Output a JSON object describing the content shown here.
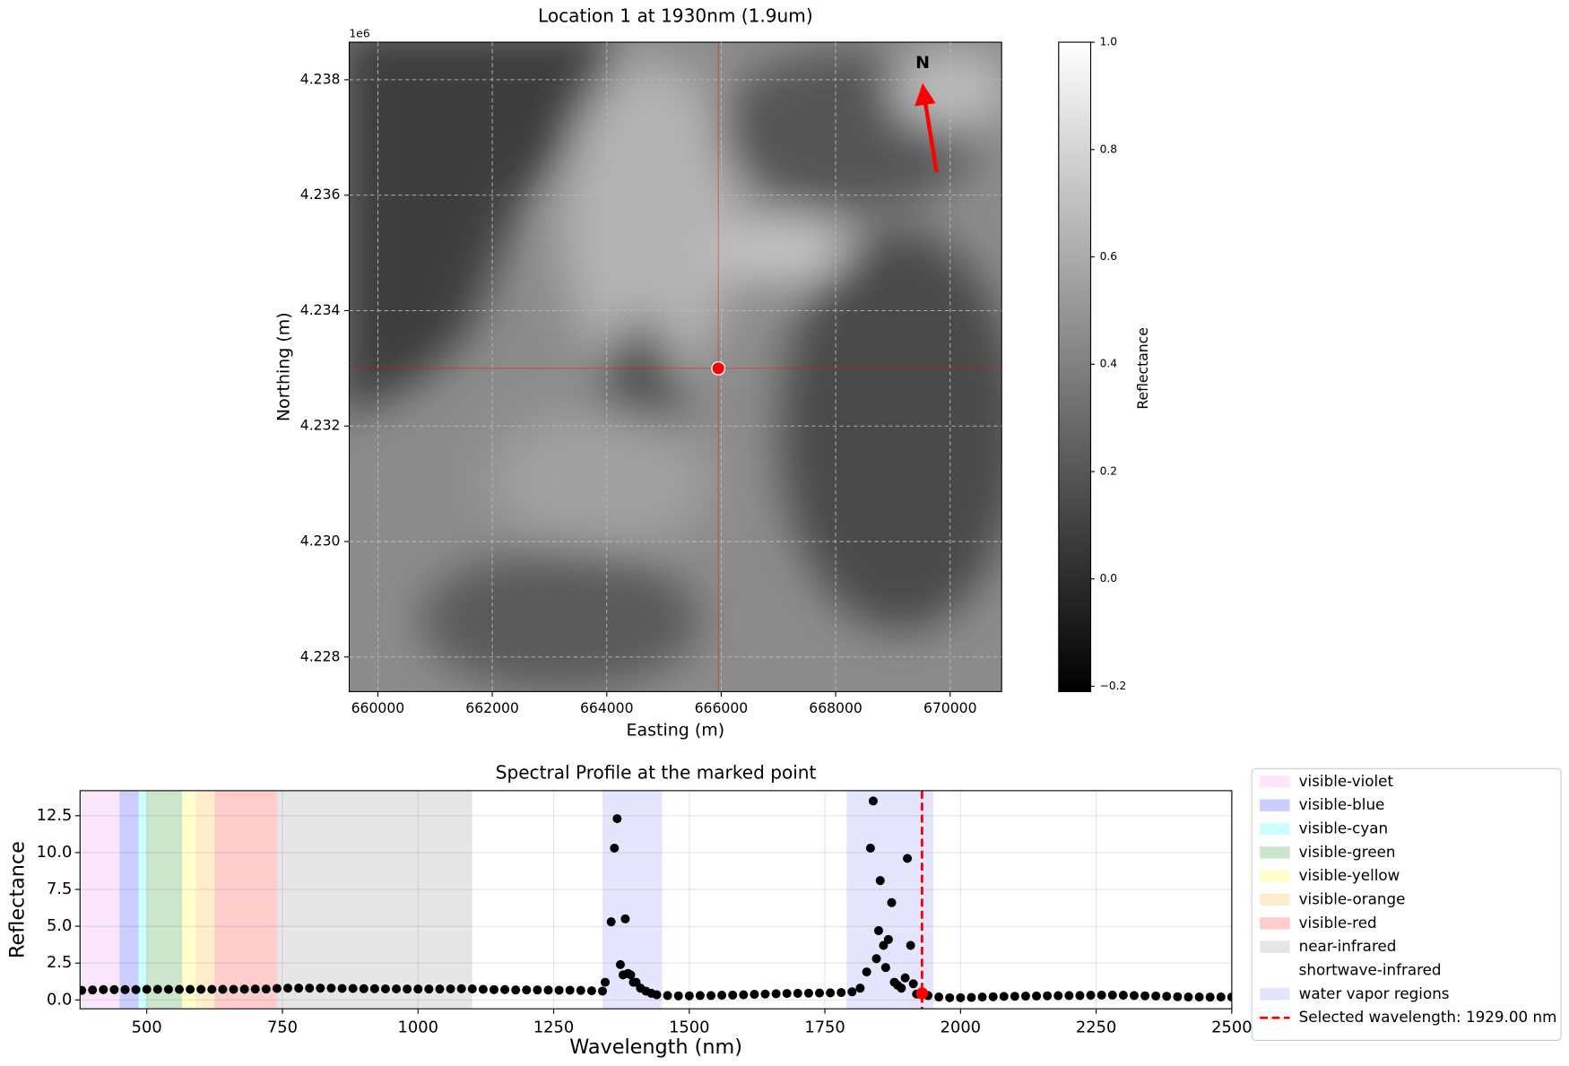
{
  "chart_data": [
    {
      "type": "image",
      "title": "Location 1 at 1930nm (1.9um)",
      "xlabel": "Easting (m)",
      "ylabel": "Northing (m)",
      "offset_text": "1e6",
      "xlim": [
        659500,
        670900
      ],
      "ylim": [
        4227400,
        4238650
      ],
      "xticks": [
        660000,
        662000,
        664000,
        666000,
        668000,
        670000
      ],
      "yticks": [
        {
          "value": 4228000,
          "label": "4.228"
        },
        {
          "value": 4230000,
          "label": "4.230"
        },
        {
          "value": 4232000,
          "label": "4.232"
        },
        {
          "value": 4234000,
          "label": "4.234"
        },
        {
          "value": 4236000,
          "label": "4.236"
        },
        {
          "value": 4238000,
          "label": "4.238"
        }
      ],
      "grid": true,
      "marker": {
        "x": 665950,
        "y": 4233000,
        "color": "#ff0000"
      },
      "north_label": "N",
      "colorbar": {
        "label": "Reflectance",
        "clim": [
          -0.21,
          1.0
        ],
        "ticks": [
          {
            "value": -0.2,
            "label": "−0.2"
          },
          {
            "value": 0,
            "label": "0.0"
          },
          0.2,
          0.4,
          0.6,
          0.8,
          {
            "value": 1,
            "label": "1.0"
          }
        ]
      }
    },
    {
      "type": "scatter",
      "title": "Spectral Profile at the marked point",
      "xlabel": "Wavelength (nm)",
      "ylabel": "Reflectance",
      "xlim": [
        377,
        2500
      ],
      "ylim": [
        -0.6,
        14.2
      ],
      "xticks": [
        500,
        750,
        1000,
        1250,
        1500,
        1750,
        2000,
        2250,
        2500
      ],
      "yticks": [
        {
          "value": 0,
          "label": "0.0"
        },
        2.5,
        {
          "value": 5,
          "label": "5.0"
        },
        7.5,
        {
          "value": 10,
          "label": "10.0"
        },
        12.5
      ],
      "grid": true,
      "color": "#000000",
      "legend": "outside-right",
      "x": [
        380,
        400,
        420,
        440,
        460,
        480,
        500,
        520,
        540,
        560,
        580,
        600,
        620,
        640,
        660,
        680,
        700,
        720,
        740,
        760,
        780,
        800,
        820,
        840,
        860,
        880,
        900,
        920,
        940,
        960,
        980,
        1000,
        1020,
        1040,
        1060,
        1080,
        1100,
        1120,
        1140,
        1160,
        1180,
        1200,
        1220,
        1240,
        1260,
        1280,
        1300,
        1320,
        1340,
        1345,
        1356,
        1362,
        1367,
        1373,
        1378,
        1382,
        1387,
        1392,
        1397,
        1402,
        1410,
        1420,
        1430,
        1440,
        1460,
        1480,
        1500,
        1520,
        1540,
        1560,
        1580,
        1600,
        1620,
        1640,
        1660,
        1680,
        1700,
        1720,
        1740,
        1760,
        1780,
        1800,
        1815,
        1827,
        1834,
        1839,
        1845,
        1849,
        1852,
        1858,
        1862,
        1867,
        1873,
        1878,
        1884,
        1891,
        1898,
        1902,
        1908,
        1913,
        1919,
        1924,
        1940,
        1960,
        1980,
        2000,
        2020,
        2040,
        2060,
        2080,
        2100,
        2120,
        2140,
        2160,
        2180,
        2200,
        2220,
        2240,
        2260,
        2280,
        2300,
        2320,
        2340,
        2360,
        2380,
        2400,
        2420,
        2440,
        2460,
        2480,
        2500
      ],
      "values": [
        0.65,
        0.68,
        0.7,
        0.7,
        0.7,
        0.7,
        0.72,
        0.72,
        0.72,
        0.72,
        0.72,
        0.72,
        0.72,
        0.72,
        0.72,
        0.73,
        0.74,
        0.74,
        0.78,
        0.8,
        0.8,
        0.8,
        0.8,
        0.8,
        0.78,
        0.78,
        0.76,
        0.76,
        0.75,
        0.75,
        0.74,
        0.74,
        0.74,
        0.74,
        0.75,
        0.76,
        0.75,
        0.72,
        0.7,
        0.7,
        0.68,
        0.68,
        0.68,
        0.67,
        0.66,
        0.66,
        0.65,
        0.62,
        0.6,
        1.2,
        5.3,
        10.3,
        12.3,
        2.4,
        1.7,
        5.5,
        1.8,
        1.7,
        1.2,
        1.2,
        0.8,
        0.6,
        0.45,
        0.35,
        0.3,
        0.28,
        0.28,
        0.3,
        0.3,
        0.32,
        0.33,
        0.35,
        0.38,
        0.4,
        0.42,
        0.44,
        0.45,
        0.46,
        0.47,
        0.48,
        0.5,
        0.55,
        0.8,
        1.9,
        10.3,
        13.5,
        2.8,
        4.7,
        8.1,
        3.7,
        2.2,
        4.1,
        6.6,
        1.2,
        1.0,
        0.8,
        1.5,
        9.6,
        3.7,
        1.1,
        0.4,
        0.4,
        0.3,
        0.2,
        0.15,
        0.15,
        0.17,
        0.2,
        0.22,
        0.24,
        0.25,
        0.26,
        0.27,
        0.28,
        0.29,
        0.3,
        0.3,
        0.32,
        0.33,
        0.33,
        0.32,
        0.3,
        0.28,
        0.27,
        0.25,
        0.22,
        0.2,
        0.2,
        0.19,
        0.2,
        0.2
      ],
      "bands": [
        {
          "name": "visible-violet",
          "color": "#ee82ee",
          "alpha": 0.2,
          "ranges": [
            [
              380,
              450
            ]
          ]
        },
        {
          "name": "visible-blue",
          "color": "#0000ff",
          "alpha": 0.2,
          "ranges": [
            [
              450,
              485
            ]
          ]
        },
        {
          "name": "visible-cyan",
          "color": "#00ffff",
          "alpha": 0.2,
          "ranges": [
            [
              485,
              500
            ]
          ]
        },
        {
          "name": "visible-green",
          "color": "#008000",
          "alpha": 0.2,
          "ranges": [
            [
              500,
              565
            ]
          ]
        },
        {
          "name": "visible-yellow",
          "color": "#ffff00",
          "alpha": 0.2,
          "ranges": [
            [
              565,
              590
            ]
          ]
        },
        {
          "name": "visible-orange",
          "color": "#ffa500",
          "alpha": 0.2,
          "ranges": [
            [
              590,
              625
            ]
          ]
        },
        {
          "name": "visible-red",
          "color": "#ff0000",
          "alpha": 0.2,
          "ranges": [
            [
              625,
              740
            ]
          ]
        },
        {
          "name": "near-infrared",
          "color": "#808080",
          "alpha": 0.2,
          "ranges": [
            [
              740,
              1100
            ]
          ]
        },
        {
          "name": "shortwave-infrared",
          "color": "#ffffff",
          "alpha": 0.2,
          "ranges": [
            [
              1100,
              2500
            ]
          ]
        },
        {
          "name": "water vapor regions",
          "color": "#0000ff",
          "alpha": 0.1,
          "ranges": [
            [
              1340,
              1450
            ],
            [
              1790,
              1950
            ]
          ]
        }
      ],
      "selected": {
        "label": "Selected wavelength: 1929.00 nm",
        "wavelength": 1929,
        "reflectance": 0.45,
        "color": "#ff0000"
      }
    }
  ]
}
